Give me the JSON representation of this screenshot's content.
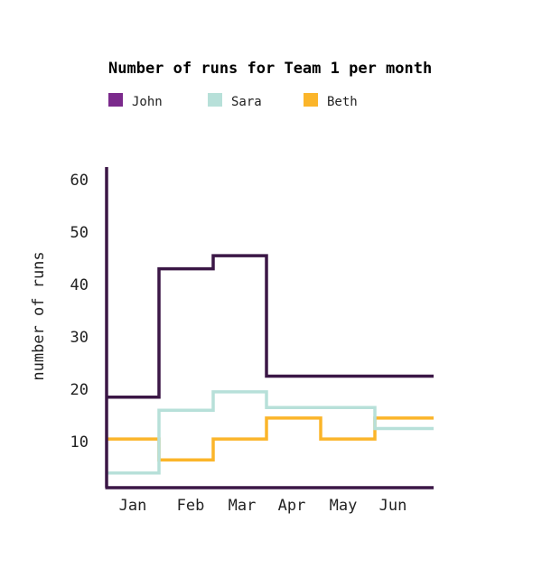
{
  "chart_data": {
    "type": "line",
    "step": true,
    "title": "Number of runs for Team 1 per month",
    "xlabel": "",
    "ylabel": "number of runs",
    "categories": [
      "Jan",
      "Feb",
      "Mar",
      "Apr",
      "May",
      "Jun"
    ],
    "yticks": [
      10,
      20,
      30,
      40,
      50,
      60
    ],
    "ylim": [
      2,
      62
    ],
    "grid": false,
    "legend_position": "top-left",
    "series": [
      {
        "name": "John",
        "color": "#3b1746",
        "legend_color": "#7b2a8c",
        "values": [
          18.5,
          43,
          45.5,
          22.5,
          22.5,
          22.5
        ]
      },
      {
        "name": "Sara",
        "color": "#b7e0d9",
        "legend_color": "#b7e0d9",
        "values": [
          4,
          16,
          19.5,
          16.5,
          16.5,
          12.5
        ]
      },
      {
        "name": "Beth",
        "color": "#fbb52a",
        "legend_color": "#fbb52a",
        "values": [
          10.5,
          6.5,
          10.5,
          14.5,
          10.5,
          14.5
        ]
      }
    ]
  }
}
